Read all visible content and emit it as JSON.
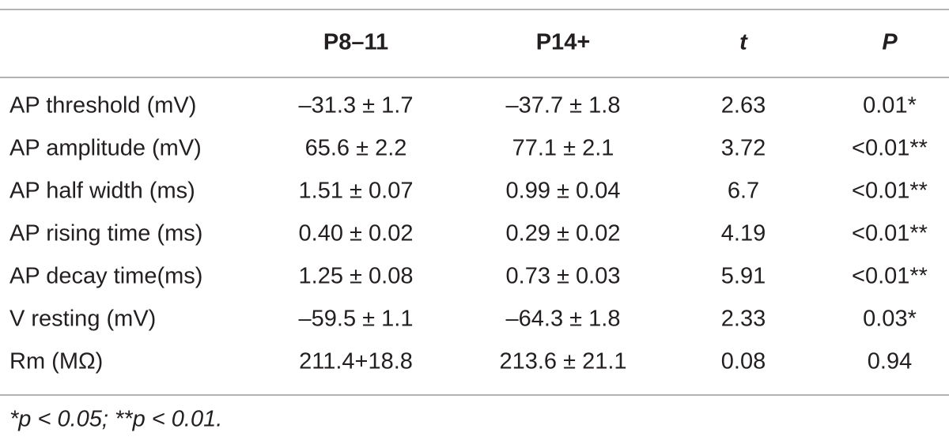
{
  "table": {
    "headers": [
      "P8–11",
      "P14+",
      "t",
      "P"
    ],
    "rows": [
      [
        "AP threshold (mV)",
        "–31.3 ± 1.7",
        "–37.7 ± 1.8",
        "2.63",
        "0.01*"
      ],
      [
        "AP amplitude (mV)",
        "65.6 ± 2.2",
        "77.1 ± 2.1",
        "3.72",
        "<0.01**"
      ],
      [
        "AP half width (ms)",
        "1.51 ± 0.07",
        "0.99 ± 0.04",
        "6.7",
        "<0.01**"
      ],
      [
        "AP rising time (ms)",
        "0.40 ± 0.02",
        "0.29 ± 0.02",
        "4.19",
        "<0.01**"
      ],
      [
        "AP decay time(ms)",
        "1.25 ± 0.08",
        "0.73 ± 0.03",
        "5.91",
        "<0.01**"
      ],
      [
        "V resting (mV)",
        "–59.5 ± 1.1",
        "–64.3 ± 1.8",
        "2.33",
        "0.03*"
      ],
      [
        "Rm (MΩ)",
        "211.4+18.8",
        "213.6 ± 21.1",
        "0.08",
        "0.94"
      ]
    ],
    "footnote": "*p < 0.05; **p < 0.01."
  }
}
